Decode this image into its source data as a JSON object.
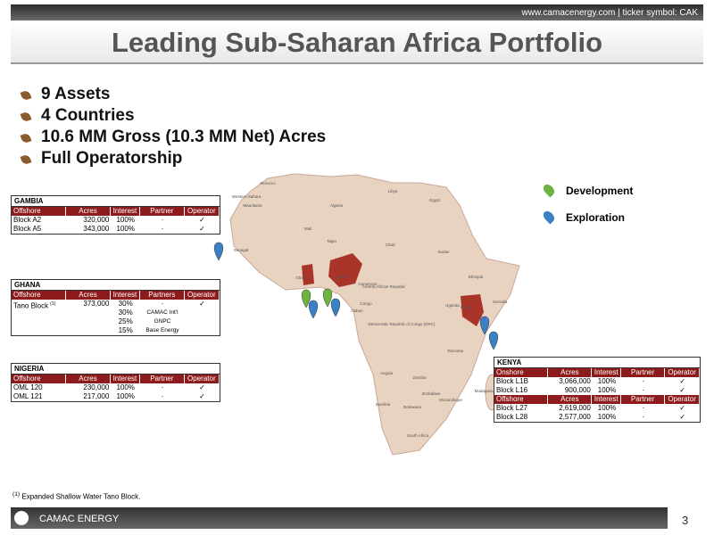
{
  "header": {
    "site": "www.camacenergy.com | ticker symbol: CAK",
    "title": "Leading Sub-Saharan Africa Portfolio"
  },
  "bullets": [
    "9 Assets",
    "4 Countries",
    "10.6 MM Gross (10.3 MM Net) Acres",
    "Full Operatorship"
  ],
  "legend": [
    "Development",
    "Exploration"
  ],
  "map_labels": [
    "Mauritania",
    "Mali",
    "Niger",
    "Chad",
    "Sudan",
    "Egypt",
    "Libya",
    "Algeria",
    "Nigeria",
    "Ethiopia",
    "Kenya",
    "Somalia",
    "Tanzania",
    "Angola",
    "Zambia",
    "Namibia",
    "Botswana",
    "South Africa",
    "Madagascar",
    "Mozambique",
    "Ghana",
    "Senegal",
    "Central African Republic",
    "Democratic Republic of Congo (DRC)",
    "Cameroon",
    "Gabon",
    "Congo",
    "Uganda",
    "Zimbabwe",
    "Western Sahara",
    "Morocco"
  ],
  "tables": [
    {
      "title": "GAMBIA",
      "sections": [
        {
          "header": [
            "Offshore",
            "Acres",
            "Interest",
            "Partner",
            "Operator"
          ],
          "rows": [
            [
              "Block A2",
              "320,000",
              "100%",
              "-",
              "✓"
            ],
            [
              "Block A5",
              "343,000",
              "100%",
              "-",
              "✓"
            ]
          ]
        }
      ]
    },
    {
      "title": "GHANA",
      "sections": [
        {
          "header": [
            "Offshore",
            "Acres",
            "Interest",
            "Partners",
            "Operator"
          ],
          "rows": [
            [
              {
                "text": "Tano Block",
                "note": "(1)"
              },
              "373,000",
              "30%",
              "-",
              "✓"
            ],
            [
              null,
              null,
              "30%",
              "CAMAC Int'l",
              null
            ],
            [
              null,
              null,
              "25%",
              "GNPC",
              null
            ],
            [
              null,
              null,
              "15%",
              "Base Energy",
              null
            ]
          ]
        }
      ]
    },
    {
      "title": "NIGERIA",
      "sections": [
        {
          "header": [
            "Offshore",
            "Acres",
            "Interest",
            "Partner",
            "Operator"
          ],
          "rows": [
            [
              "OML 120",
              "230,000",
              "100%",
              "-",
              "✓"
            ],
            [
              "OML 121",
              "217,000",
              "100%",
              "-",
              "✓"
            ]
          ]
        }
      ]
    },
    {
      "title": "KENYA",
      "sections": [
        {
          "header": [
            "Onshore",
            "Acres",
            "Interest",
            "Partner",
            "Operator"
          ],
          "rows": [
            [
              "Block L1B",
              "3,066,000",
              "100%",
              "-",
              "✓"
            ],
            [
              "Block L16",
              "900,000",
              "100%",
              "-",
              "✓"
            ]
          ]
        },
        {
          "header": [
            "Offshore",
            "Acres",
            "Interest",
            "Partner",
            "Operator"
          ],
          "rows": [
            [
              "Block L27",
              "2,619,000",
              "100%",
              "-",
              "✓"
            ],
            [
              "Block L28",
              "2,577,000",
              "100%",
              "-",
              "✓"
            ]
          ]
        }
      ]
    }
  ],
  "footnote": {
    "mark": "(1)",
    "text": "Expanded Shallow Water Tano Block."
  },
  "footer": {
    "company": "CAMAC ENERGY",
    "page": "3"
  }
}
